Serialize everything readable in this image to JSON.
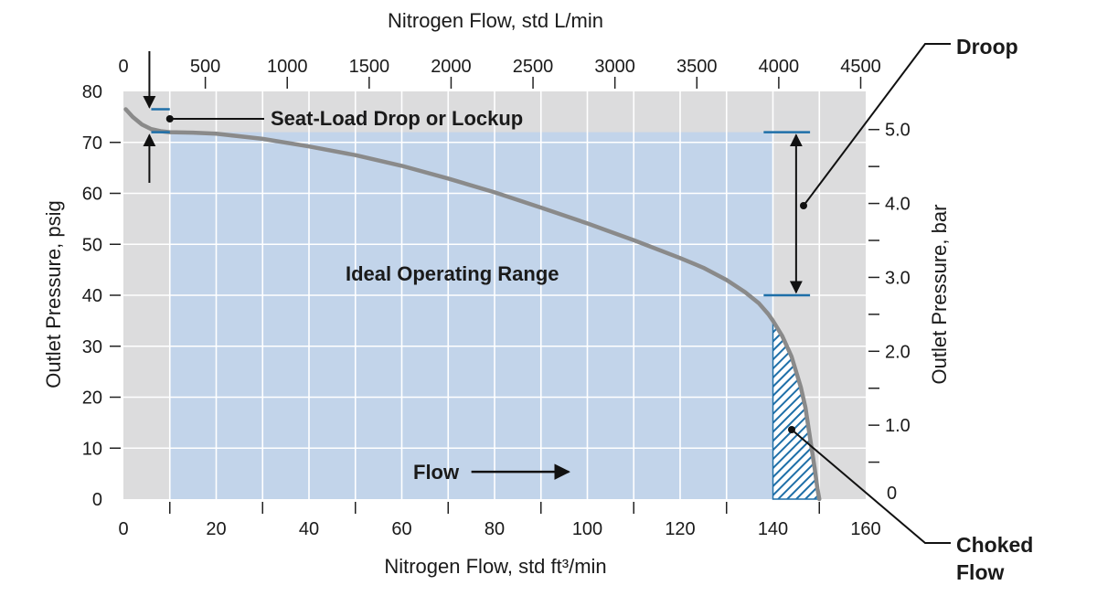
{
  "chart_data": {
    "type": "line",
    "top_axis_title": "Nitrogen Flow, std L/min",
    "bottom_axis_title": "Nitrogen Flow, std ft³/min",
    "left_axis_title": "Outlet Pressure, psig",
    "right_axis_title": "Outlet Pressure, bar",
    "x_bottom": {
      "ticks": [
        0,
        20,
        40,
        60,
        80,
        100,
        120,
        140,
        160
      ],
      "xlim": [
        0,
        160
      ]
    },
    "x_top": {
      "ticks": [
        0,
        500,
        1000,
        1500,
        2000,
        2500,
        3000,
        3500,
        4000,
        4500
      ],
      "xlim": [
        0,
        4530.7
      ]
    },
    "y_left": {
      "ticks": [
        0,
        10,
        20,
        30,
        40,
        50,
        60,
        70,
        80
      ],
      "ylim": [
        0,
        80
      ]
    },
    "y_right": {
      "ticks": [
        "0",
        "1.0",
        "2.0",
        "3.0",
        "4.0",
        "5.0"
      ],
      "ticks_values": [
        0,
        1,
        2,
        3,
        4,
        5
      ],
      "ylim": [
        0,
        5.516
      ]
    },
    "grid": true,
    "colors": {
      "background": "#dcdcdd",
      "ideal_range": "#c2d4ea",
      "curve": "#8a8a8a",
      "markers": "#1e6fa8",
      "hatch": "#1e6fa8",
      "grid": "#ffffff"
    },
    "series": [
      {
        "x": [
          0.5,
          2,
          4,
          6,
          8,
          10,
          15,
          20,
          30,
          40,
          50,
          60,
          70,
          80,
          90,
          100,
          110,
          120,
          125,
          130,
          134,
          137,
          139,
          140,
          142,
          144,
          146,
          147,
          148,
          149,
          149.6,
          150
        ],
        "y": [
          76.5,
          75,
          73.5,
          72.6,
          72.2,
          72,
          71.9,
          71.7,
          70.7,
          69.2,
          67.5,
          65.4,
          62.9,
          60.2,
          57.2,
          54.1,
          50.8,
          47.3,
          45.4,
          43,
          40.6,
          38.4,
          36.3,
          35,
          32,
          28,
          22,
          18,
          12,
          6,
          2,
          0
        ]
      }
    ],
    "ideal_range": {
      "x": [
        10,
        140
      ],
      "y": [
        0,
        72
      ]
    },
    "choked_region": {
      "x_start": 140
    },
    "annotations": {
      "seat_load": "Seat-Load Drop or Lockup",
      "ideal": "Ideal Operating Range",
      "flow": "Flow",
      "droop": "Droop",
      "choked_line1": "Choked",
      "choked_line2": "Flow"
    },
    "seat_load_markers": {
      "x": [
        6,
        10
      ],
      "y_high": 76.5,
      "y_low": 72
    },
    "droop_markers": {
      "x": [
        138,
        148
      ],
      "y_high": 72,
      "y_low": 40,
      "arrow_x": 145
    },
    "flow_arrow": {
      "from": 75,
      "to": 96,
      "y": 5
    }
  }
}
